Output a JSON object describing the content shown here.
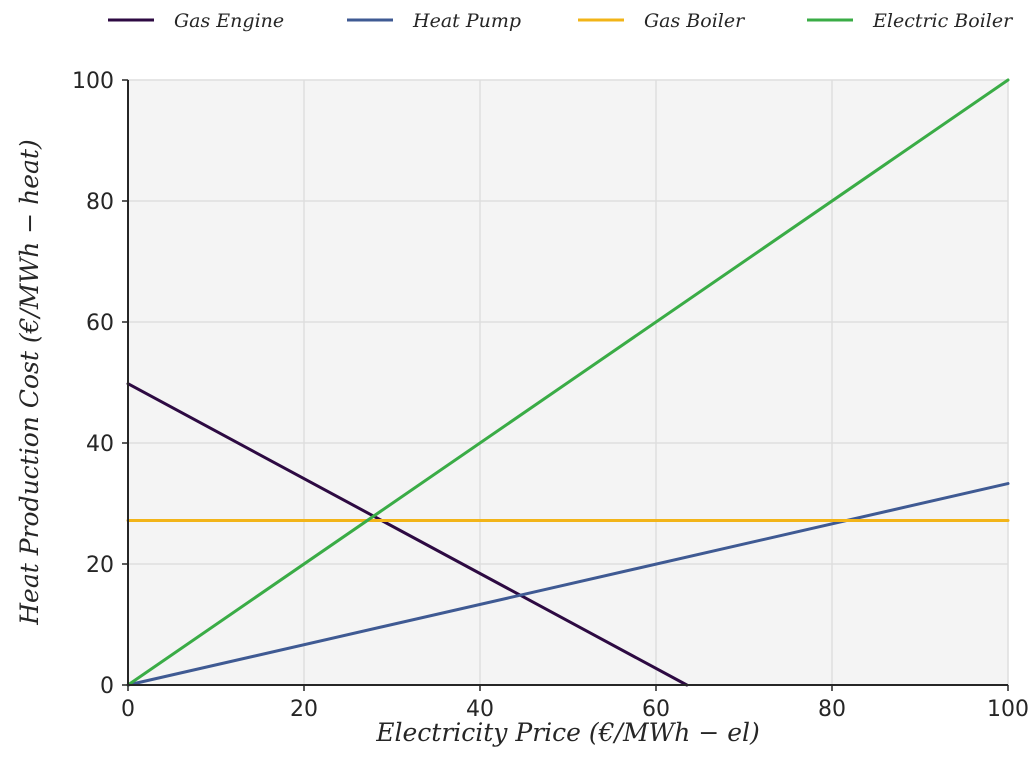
{
  "chart_data": {
    "type": "line",
    "xlabel": "Electricity Price (€/MWh − el)",
    "ylabel": "Heat Production Cost (€/MWh − heat)",
    "xlim": [
      0,
      100
    ],
    "ylim": [
      0,
      100
    ],
    "xticks": [
      "0",
      "20",
      "40",
      "60",
      "80",
      "100"
    ],
    "yticks": [
      "0",
      "20",
      "40",
      "60",
      "80",
      "100"
    ],
    "xtick_values": [
      0,
      20,
      40,
      60,
      80,
      100
    ],
    "ytick_values": [
      0,
      20,
      40,
      60,
      80,
      100
    ],
    "grid": true,
    "legend_position": "top",
    "series": [
      {
        "name": "Gas Engine",
        "color": "#2d0a42",
        "x": [
          0,
          63.5
        ],
        "y": [
          49.8,
          0
        ]
      },
      {
        "name": "Heat Pump",
        "color": "#3f5a93",
        "x": [
          0,
          100
        ],
        "y": [
          0,
          33.3
        ]
      },
      {
        "name": "Gas Boiler",
        "color": "#f2b418",
        "x": [
          0,
          100
        ],
        "y": [
          27.2,
          27.2
        ]
      },
      {
        "name": "Electric Boiler",
        "color": "#3aac46",
        "x": [
          0,
          100
        ],
        "y": [
          0,
          100
        ]
      }
    ]
  }
}
